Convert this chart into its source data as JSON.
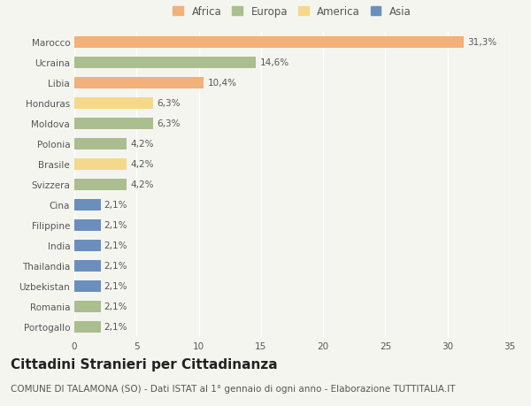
{
  "categories": [
    "Marocco",
    "Ucraina",
    "Libia",
    "Honduras",
    "Moldova",
    "Polonia",
    "Brasile",
    "Svizzera",
    "Cina",
    "Filippine",
    "India",
    "Thailandia",
    "Uzbekistan",
    "Romania",
    "Portogallo"
  ],
  "values": [
    31.3,
    14.6,
    10.4,
    6.3,
    6.3,
    4.2,
    4.2,
    4.2,
    2.1,
    2.1,
    2.1,
    2.1,
    2.1,
    2.1,
    2.1
  ],
  "continents": [
    "Africa",
    "Europa",
    "Africa",
    "America",
    "Europa",
    "Europa",
    "America",
    "Europa",
    "Asia",
    "Asia",
    "Asia",
    "Asia",
    "Asia",
    "Europa",
    "Europa"
  ],
  "labels": [
    "31,3%",
    "14,6%",
    "10,4%",
    "6,3%",
    "6,3%",
    "4,2%",
    "4,2%",
    "4,2%",
    "2,1%",
    "2,1%",
    "2,1%",
    "2,1%",
    "2,1%",
    "2,1%",
    "2,1%"
  ],
  "colors": {
    "Africa": "#F2B07B",
    "Europa": "#ABBE8F",
    "America": "#F5D98A",
    "Asia": "#6A8FBD"
  },
  "legend_order": [
    "Africa",
    "Europa",
    "America",
    "Asia"
  ],
  "xlim": [
    0,
    35
  ],
  "xticks": [
    0,
    5,
    10,
    15,
    20,
    25,
    30,
    35
  ],
  "title": "Cittadini Stranieri per Cittadinanza",
  "subtitle": "COMUNE DI TALAMONA (SO) - Dati ISTAT al 1° gennaio di ogni anno - Elaborazione TUTTITALIA.IT",
  "background_color": "#f5f5f0",
  "bar_height": 0.55,
  "title_fontsize": 11,
  "subtitle_fontsize": 7.5,
  "label_fontsize": 7.5,
  "tick_fontsize": 7.5,
  "legend_fontsize": 8.5
}
